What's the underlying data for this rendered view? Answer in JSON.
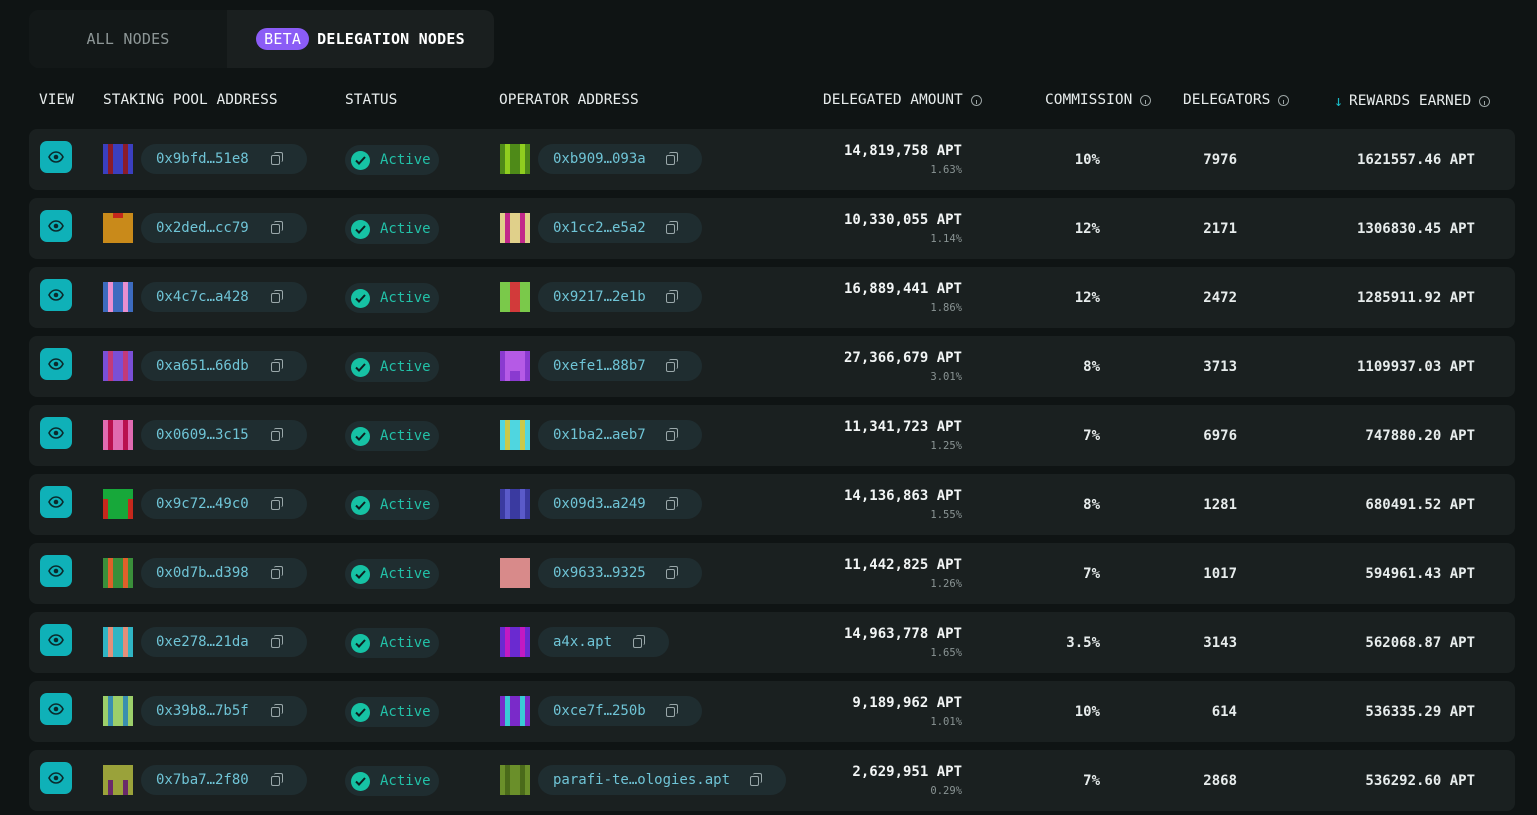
{
  "tabs": {
    "all": "ALL NODES",
    "beta": "BETA",
    "delegation": "DELEGATION NODES"
  },
  "headers": {
    "view": "VIEW",
    "pool": "STAKING POOL ADDRESS",
    "status": "STATUS",
    "operator": "OPERATOR ADDRESS",
    "delegated": "DELEGATED AMOUNT",
    "commission": "COMMISSION",
    "delegators": "DELEGATORS",
    "rewards": "REWARDS EARNED"
  },
  "colors": {
    "accent": "#0fb1b8",
    "active": "#16c2a4",
    "beta": "#8b5cf6"
  },
  "rows": [
    {
      "pool": "0x9bfd…51e8",
      "status": "Active",
      "operator": "0xb909…093a",
      "amount": "14,819,758 APT",
      "share": "1.63%",
      "commission": "10%",
      "delegators": "7976",
      "rewards": "1621557.46 APT"
    },
    {
      "pool": "0x2ded…cc79",
      "status": "Active",
      "operator": "0x1cc2…e5a2",
      "amount": "10,330,055 APT",
      "share": "1.14%",
      "commission": "12%",
      "delegators": "2171",
      "rewards": "1306830.45 APT"
    },
    {
      "pool": "0x4c7c…a428",
      "status": "Active",
      "operator": "0x9217…2e1b",
      "amount": "16,889,441 APT",
      "share": "1.86%",
      "commission": "12%",
      "delegators": "2472",
      "rewards": "1285911.92 APT"
    },
    {
      "pool": "0xa651…66db",
      "status": "Active",
      "operator": "0xefe1…88b7",
      "amount": "27,366,679 APT",
      "share": "3.01%",
      "commission": "8%",
      "delegators": "3713",
      "rewards": "1109937.03 APT"
    },
    {
      "pool": "0x0609…3c15",
      "status": "Active",
      "operator": "0x1ba2…aeb7",
      "amount": "11,341,723 APT",
      "share": "1.25%",
      "commission": "7%",
      "delegators": "6976",
      "rewards": "747880.20 APT"
    },
    {
      "pool": "0x9c72…49c0",
      "status": "Active",
      "operator": "0x09d3…a249",
      "amount": "14,136,863 APT",
      "share": "1.55%",
      "commission": "8%",
      "delegators": "1281",
      "rewards": "680491.52 APT"
    },
    {
      "pool": "0x0d7b…d398",
      "status": "Active",
      "operator": "0x9633…9325",
      "amount": "11,442,825 APT",
      "share": "1.26%",
      "commission": "7%",
      "delegators": "1017",
      "rewards": "594961.43 APT"
    },
    {
      "pool": "0xe278…21da",
      "status": "Active",
      "operator": "a4x.apt",
      "amount": "14,963,778 APT",
      "share": "1.65%",
      "commission": "3.5%",
      "delegators": "3143",
      "rewards": "562068.87 APT"
    },
    {
      "pool": "0x39b8…7b5f",
      "status": "Active",
      "operator": "0xce7f…250b",
      "amount": "9,189,962 APT",
      "share": "1.01%",
      "commission": "10%",
      "delegators": "614",
      "rewards": "536335.29 APT"
    },
    {
      "pool": "0x7ba7…2f80",
      "status": "Active",
      "operator": "parafi-te…ologies.apt",
      "amount": "2,629,951 APT",
      "share": "0.29%",
      "commission": "7%",
      "delegators": "2868",
      "rewards": "536292.60 APT"
    }
  ],
  "avatars": {
    "pool": [
      [
        "#3b3fbf",
        "#8b1c2a"
      ],
      [
        "#c98a1a",
        "#c5281c"
      ],
      [
        "#e98fd0",
        "#3d6bbf"
      ],
      [
        "#7a4fd6",
        "#c23a7a"
      ],
      [
        "#b8104f",
        "#e06ab0"
      ],
      [
        "#17a83a",
        "#c6281c"
      ],
      [
        "#3a8f3a",
        "#e0602a"
      ],
      [
        "#e38f7a",
        "#30b5c4"
      ],
      [
        "#9ccf6a",
        "#3a8fb0"
      ],
      [
        "#9aa23a",
        "#6a2a6a"
      ]
    ],
    "operator": [
      [
        "#8fce1f",
        "#4e8a18"
      ],
      [
        "#e0d08a",
        "#c2288a"
      ],
      [
        "#7ac94a",
        "#d23a3a"
      ],
      [
        "#b55ae6",
        "#8a3ad0"
      ],
      [
        "#4fd6e0",
        "#c9c94a"
      ],
      [
        "#5a5ac9",
        "#3a3aa0"
      ],
      [
        "#d88a8a",
        "#7ac98a"
      ],
      [
        "#6a2ad0",
        "#c21ac2"
      ],
      [
        "#3ac9d6",
        "#7a2ac9"
      ],
      [
        "#6a8f2a",
        "#4a6a1a"
      ]
    ]
  }
}
